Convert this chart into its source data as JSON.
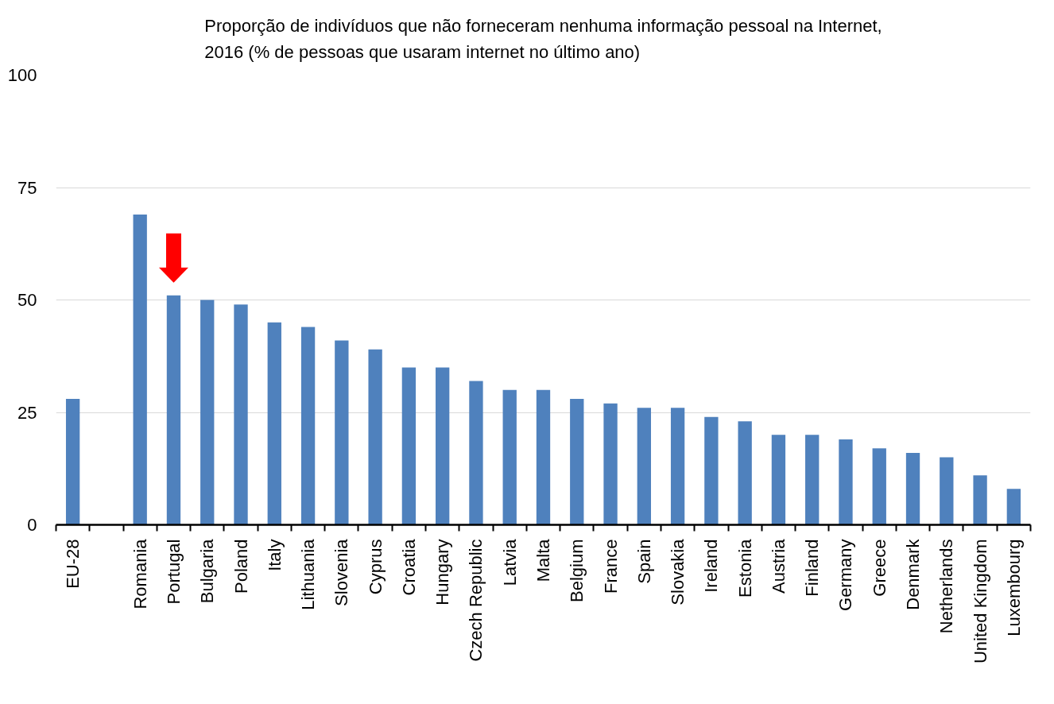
{
  "chart_data": {
    "type": "bar",
    "title": "Proporção de indivíduos que não forneceram nenhuma informação pessoal na Internet, 2016 (% de pessoas que usaram internet no último ano)",
    "categories": [
      "EU-28",
      null,
      "Romania",
      "Portugal",
      "Bulgaria",
      "Poland",
      "Italy",
      "Lithuania",
      "Slovenia",
      "Cyprus",
      "Croatia",
      "Hungary",
      "Czech Republic",
      "Latvia",
      "Malta",
      "Belgium",
      "France",
      "Spain",
      "Slovakia",
      "Ireland",
      "Estonia",
      "Austria",
      "Finland",
      "Germany",
      "Greece",
      "Denmark",
      "Netherlands",
      "United Kingdom",
      "Luxembourg"
    ],
    "values": [
      28,
      null,
      69,
      51,
      50,
      49,
      45,
      44,
      41,
      39,
      35,
      35,
      32,
      30,
      30,
      28,
      27,
      26,
      26,
      24,
      23,
      20,
      20,
      19,
      17,
      16,
      15,
      11,
      8
    ],
    "color": "#4f81bd",
    "ylim": [
      0,
      100
    ],
    "yticks": [
      0,
      25,
      50,
      75,
      100
    ],
    "grid": "y"
  }
}
